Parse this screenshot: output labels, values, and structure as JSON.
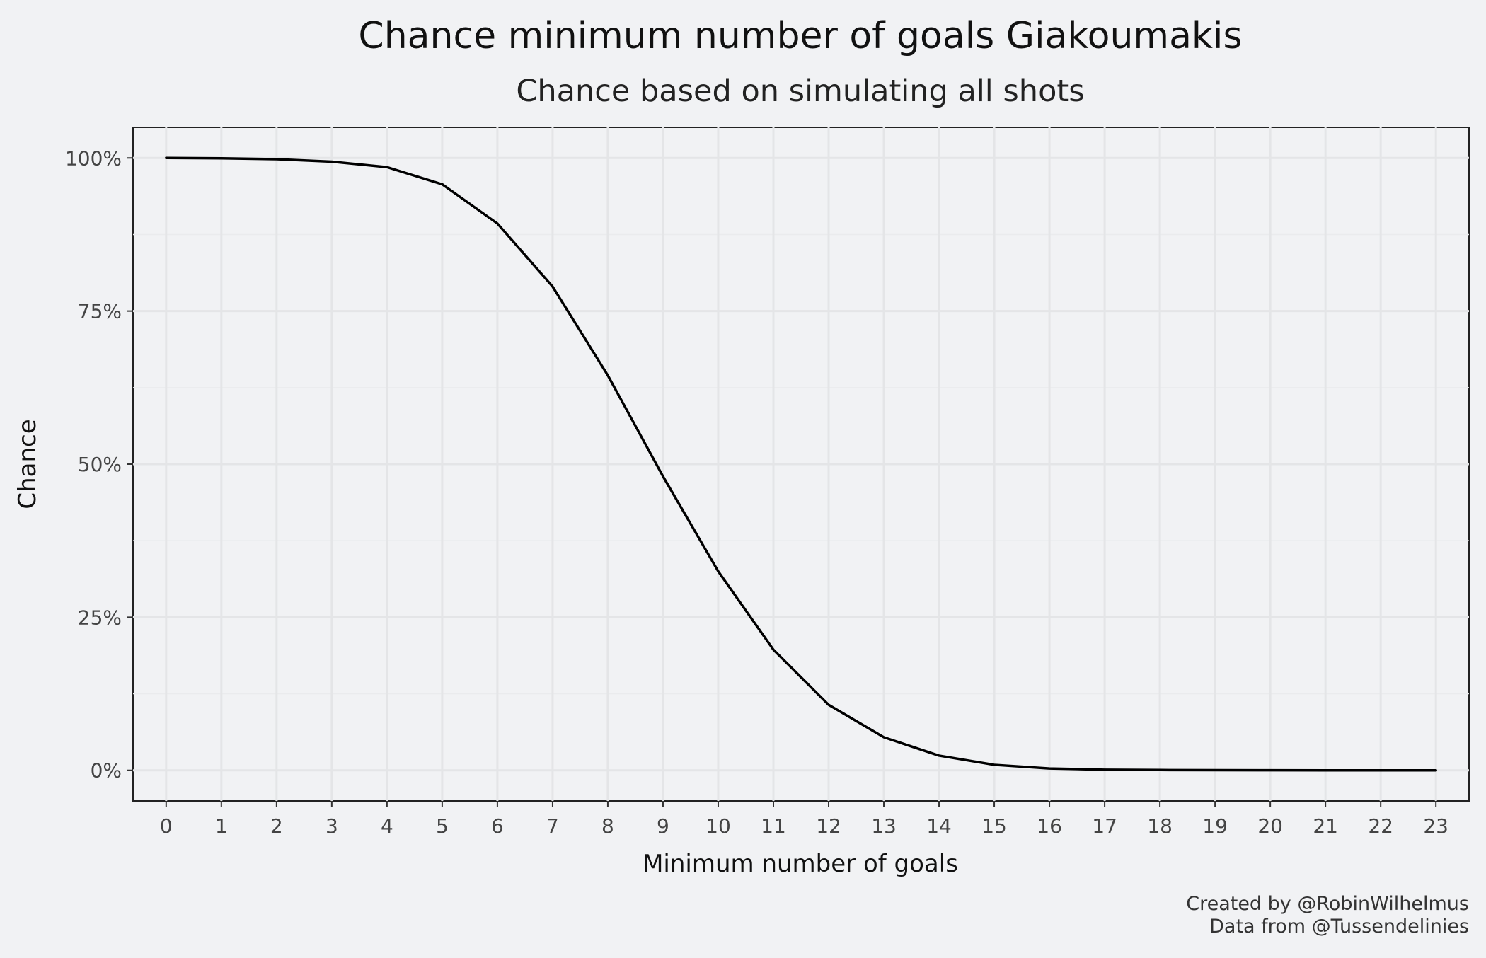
{
  "chart_data": {
    "type": "line",
    "title": "Chance minimum number of goals Giakoumakis",
    "subtitle": "Chance based on simulating all shots",
    "xlabel": "Minimum number of goals",
    "ylabel": "Chance",
    "x": [
      0,
      1,
      2,
      3,
      4,
      5,
      6,
      7,
      8,
      9,
      10,
      11,
      12,
      13,
      14,
      15,
      16,
      17,
      18,
      19,
      20,
      21,
      22,
      23
    ],
    "series": [
      {
        "values": [
          1.0,
          0.9995,
          0.998,
          0.994,
          0.985,
          0.957,
          0.893,
          0.79,
          0.645,
          0.48,
          0.325,
          0.197,
          0.107,
          0.054,
          0.024,
          0.009,
          0.003,
          0.001,
          0.0005,
          0.0002,
          0.0001,
          0.0,
          0.0,
          0.0
        ],
        "color": "#000000"
      }
    ],
    "xlim": [
      -0.6,
      23.6
    ],
    "ylim": [
      -0.05,
      1.05
    ],
    "x_ticks": [
      "0",
      "1",
      "2",
      "3",
      "4",
      "5",
      "6",
      "7",
      "8",
      "9",
      "10",
      "11",
      "12",
      "13",
      "14",
      "15",
      "16",
      "17",
      "18",
      "19",
      "20",
      "21",
      "22",
      "23"
    ],
    "y_ticks": [
      0,
      0.25,
      0.5,
      0.75,
      1.0
    ],
    "y_tick_labels": [
      "0%",
      "25%",
      "50%",
      "75%",
      "100%"
    ],
    "grid": true,
    "legend": "none"
  },
  "caption": {
    "line1": "Created by @RobinWilhelmus",
    "line2": "Data from @Tussendelinies"
  },
  "colors": {
    "background": "#f1f2f4",
    "grid_major": "#e4e5e7",
    "grid_minor": "#eaebed",
    "line": "#000000",
    "axis_text": "#444444"
  }
}
